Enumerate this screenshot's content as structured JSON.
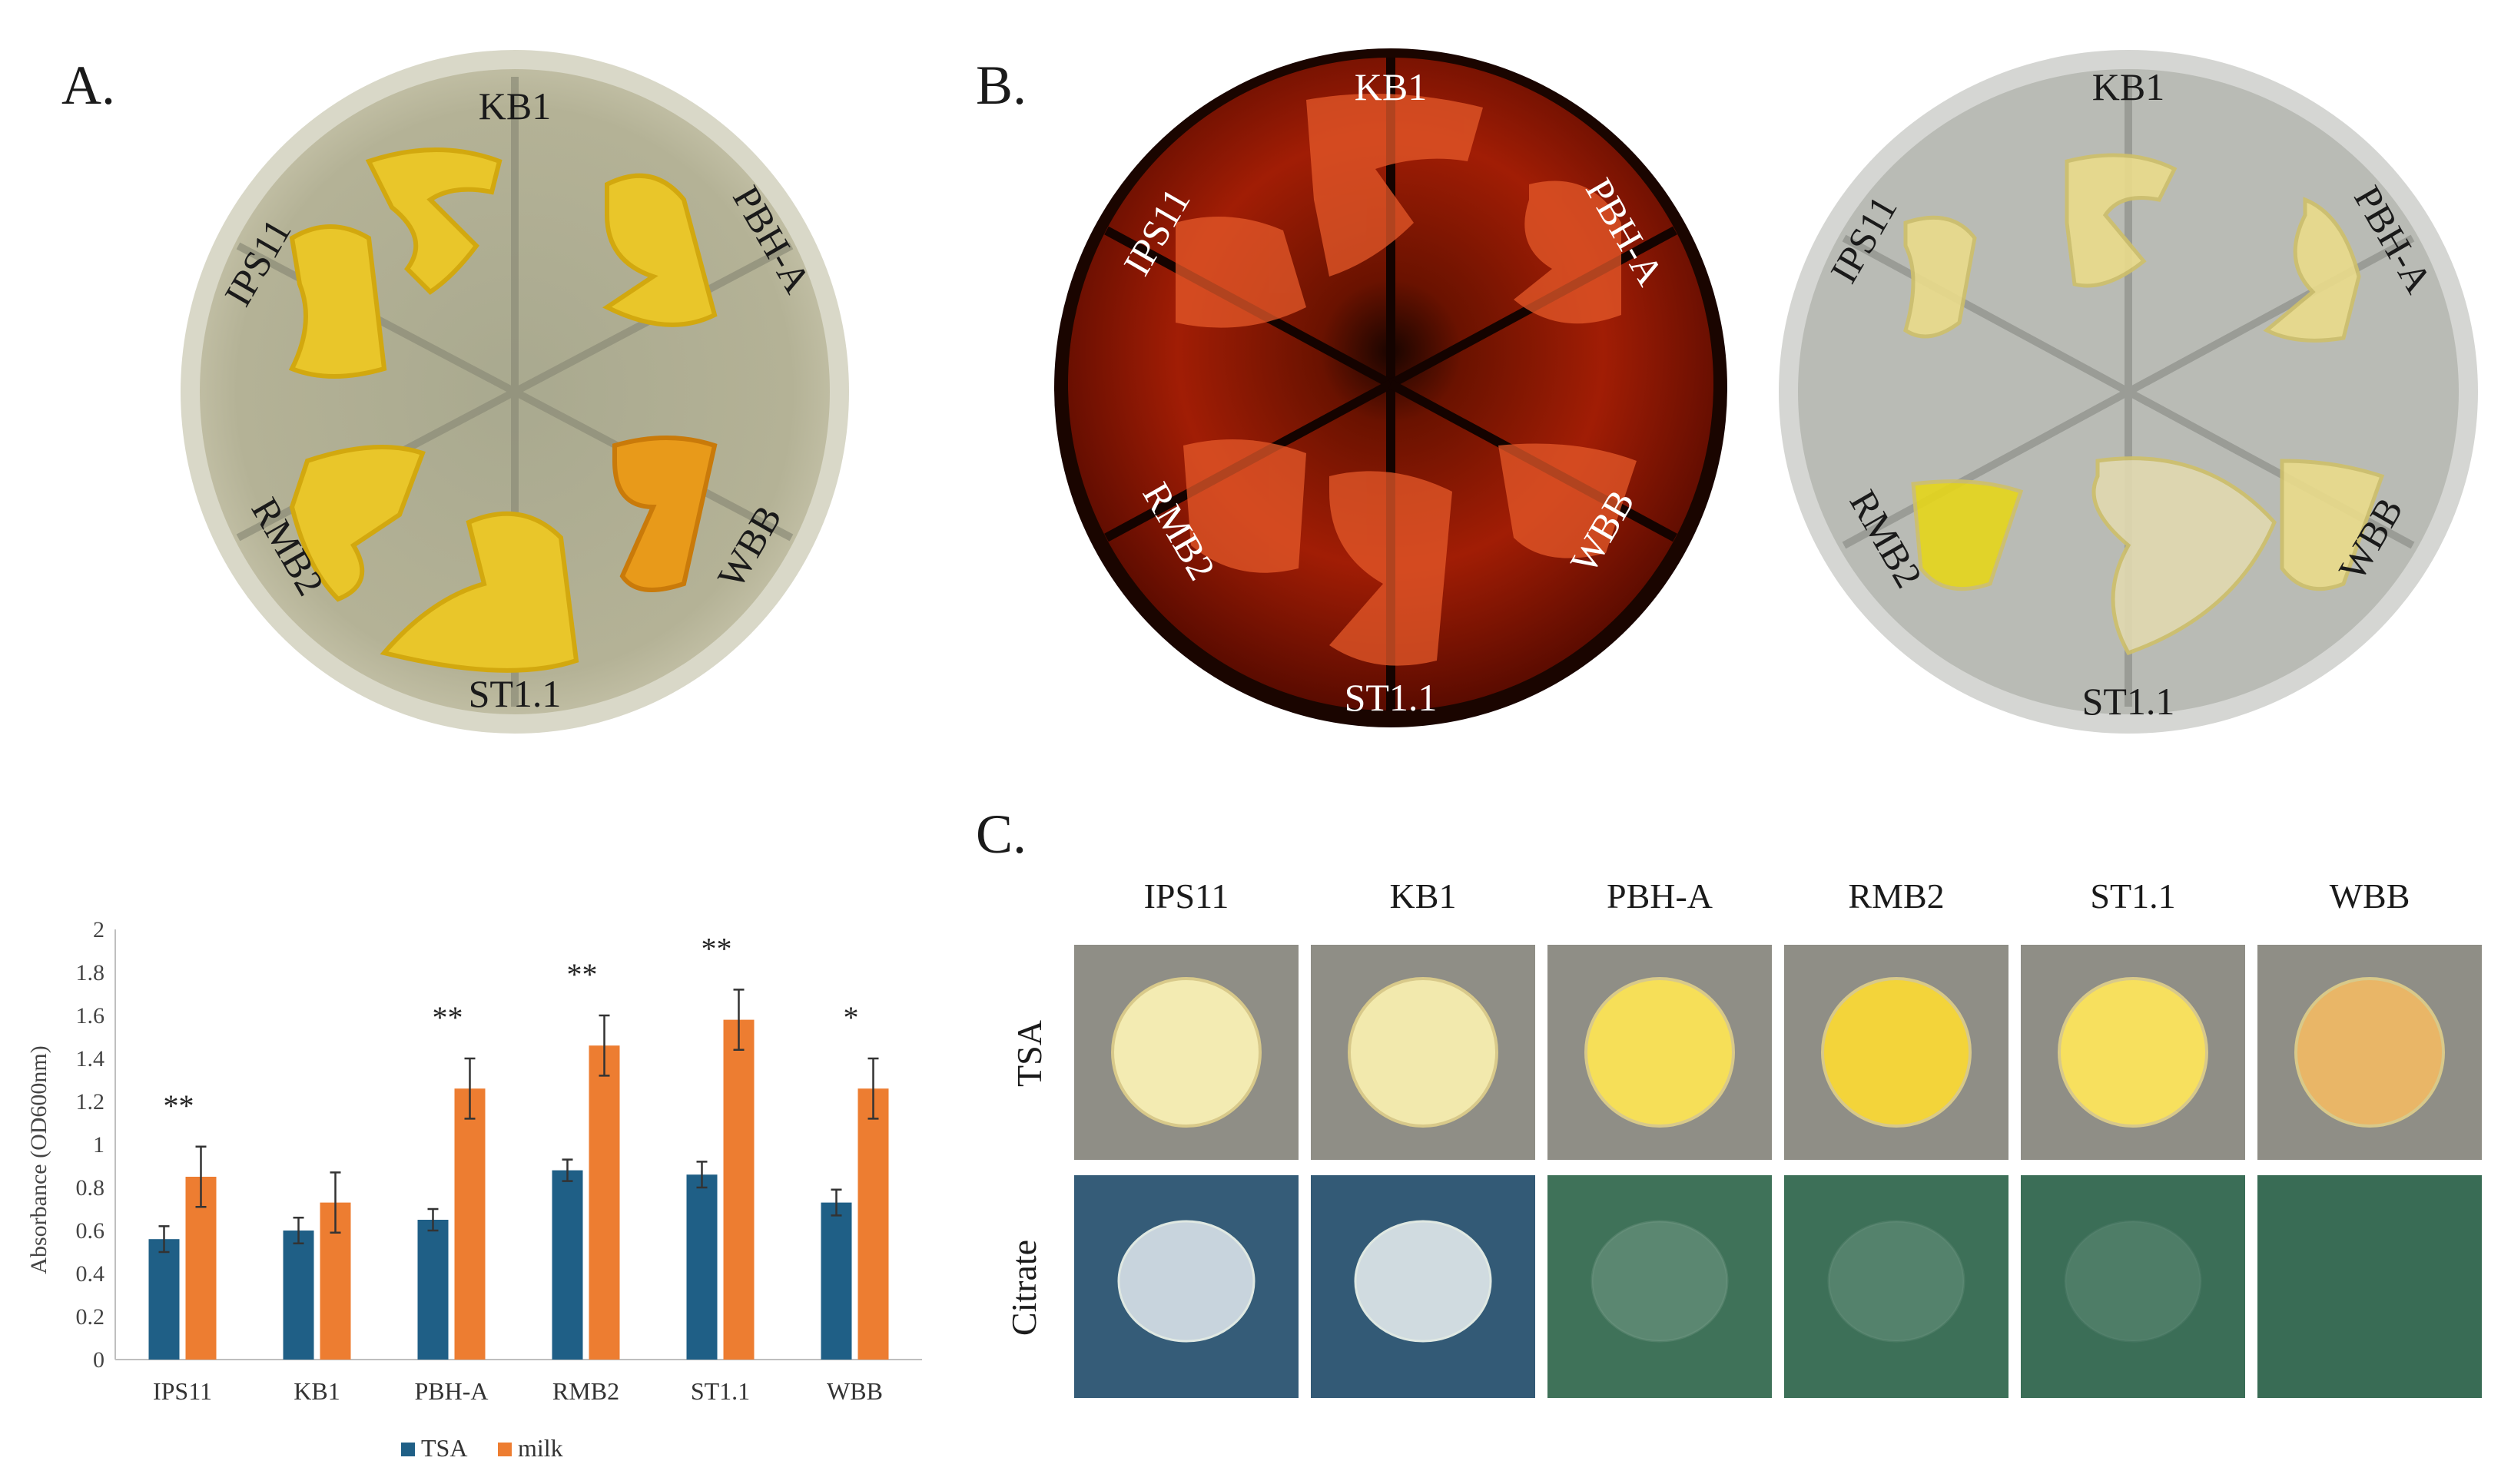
{
  "panels": {
    "a": {
      "letter": "A.",
      "labels": [
        "KB1",
        "PBH-A",
        "WBB",
        "ST1.1",
        "RMB2",
        "IPS11"
      ]
    },
    "b": {
      "letter": "B.",
      "labels": [
        "KB1",
        "PBH-A",
        "WBB",
        "ST1.1",
        "RMB2",
        "IPS11"
      ]
    },
    "c": {
      "letter": "C.",
      "columns": [
        "IPS11",
        "KB1",
        "PBH-A",
        "RMB2",
        "ST1.1",
        "WBB"
      ],
      "rows": [
        "TSA",
        "Citrate"
      ]
    }
  },
  "chart_data": {
    "type": "bar",
    "categories": [
      "IPS11",
      "KB1",
      "PBH-A",
      "RMB2",
      "ST1.1",
      "WBB"
    ],
    "series": [
      {
        "name": "TSA",
        "color": "#1f5f86",
        "values": [
          0.56,
          0.6,
          0.65,
          0.88,
          0.86,
          0.73
        ],
        "errors": [
          0.06,
          0.06,
          0.05,
          0.05,
          0.06,
          0.06
        ]
      },
      {
        "name": "milk",
        "color": "#ed7d31",
        "values": [
          0.85,
          0.73,
          1.26,
          1.46,
          1.58,
          1.26
        ],
        "errors": [
          0.14,
          0.14,
          0.14,
          0.14,
          0.14,
          0.14
        ]
      }
    ],
    "significance": [
      "**",
      "",
      "**",
      "**",
      "**",
      "*"
    ],
    "ylabel": "Absorbance (OD600nm)",
    "ylim": [
      0,
      2
    ],
    "yticks": [
      "0",
      "0.2",
      "0.4",
      "0.6",
      "0.8",
      "1",
      "1.2",
      "1.4",
      "1.6",
      "1.8",
      "2"
    ],
    "legend": "bottom"
  }
}
